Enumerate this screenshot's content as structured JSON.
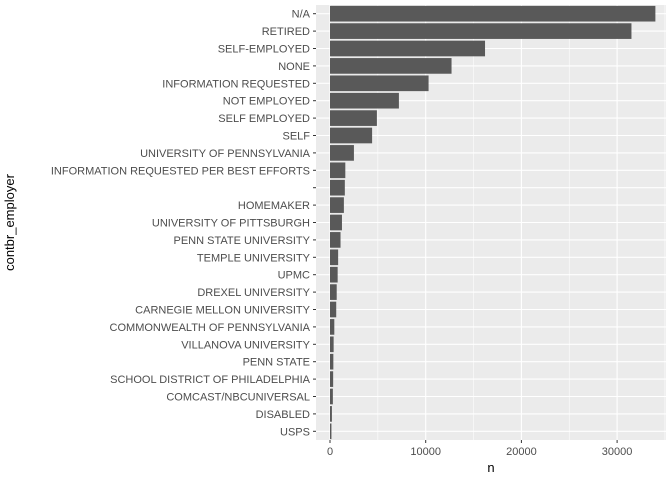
{
  "colors": {
    "panel_background": "#ebebeb",
    "grid_major": "#ffffff",
    "bar_fill": "#595959",
    "tick_text": "#4d4d4d",
    "axis_title": "#000000"
  },
  "chart_data": {
    "type": "bar",
    "orientation": "horizontal",
    "xlabel": "n",
    "ylabel": "contbr_employer",
    "xlim": [
      0,
      34000
    ],
    "xticks": [
      0,
      10000,
      20000,
      30000
    ],
    "xtick_labels": [
      "0",
      "10000",
      "20000",
      "30000"
    ],
    "grid": true,
    "legend": "none",
    "categories": [
      "N/A",
      "RETIRED",
      "SELF-EMPLOYED",
      "NONE",
      "INFORMATION REQUESTED",
      "NOT EMPLOYED",
      "SELF EMPLOYED",
      "SELF",
      "UNIVERSITY OF PENNSYLVANIA",
      "INFORMATION REQUESTED PER BEST EFFORTS",
      "",
      "HOMEMAKER",
      "UNIVERSITY OF PITTSBURGH",
      "PENN STATE UNIVERSITY",
      "TEMPLE UNIVERSITY",
      "UPMC",
      "DREXEL UNIVERSITY",
      "CARNEGIE MELLON UNIVERSITY",
      "COMMONWEALTH OF PENNSYLVANIA",
      "VILLANOVA UNIVERSITY",
      "PENN STATE",
      "SCHOOL DISTRICT OF PHILADELPHIA",
      "COMCAST/NBCUNIVERSAL",
      "DISABLED",
      "USPS"
    ],
    "values": [
      34000,
      31500,
      16200,
      12700,
      10300,
      7200,
      4900,
      4400,
      2500,
      1600,
      1550,
      1450,
      1250,
      1100,
      850,
      800,
      700,
      650,
      450,
      380,
      350,
      330,
      300,
      200,
      150
    ]
  }
}
